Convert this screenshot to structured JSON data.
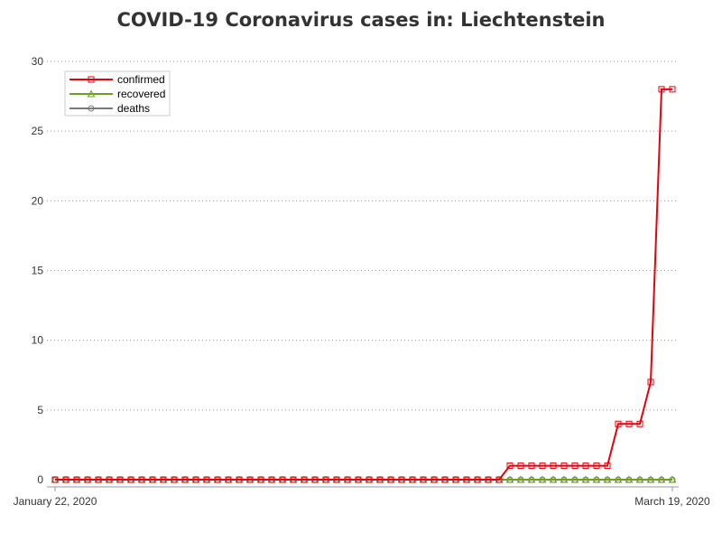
{
  "chart_data": {
    "type": "line",
    "title": "COVID-19 Coronavirus cases in: Liechtenstein",
    "xlabel": "",
    "ylabel": "",
    "x_start": "2020-01-22",
    "x_end": "2020-03-19",
    "x_tick_labels": [
      "January 22, 2020",
      "March 19, 2020"
    ],
    "ylim": [
      0,
      30
    ],
    "y_ticks": [
      0,
      5,
      10,
      15,
      20,
      25,
      30
    ],
    "grid": "horizontal-dotted",
    "legend_position": "top-left",
    "series": [
      {
        "name": "confirmed",
        "color": "#e8000b",
        "marker": "square",
        "values": [
          0,
          0,
          0,
          0,
          0,
          0,
          0,
          0,
          0,
          0,
          0,
          0,
          0,
          0,
          0,
          0,
          0,
          0,
          0,
          0,
          0,
          0,
          0,
          0,
          0,
          0,
          0,
          0,
          0,
          0,
          0,
          0,
          0,
          0,
          0,
          0,
          0,
          0,
          0,
          0,
          0,
          0,
          1,
          1,
          1,
          1,
          1,
          1,
          1,
          1,
          1,
          1,
          4,
          4,
          4,
          7,
          28,
          28
        ]
      },
      {
        "name": "recovered",
        "color": "#6aa121",
        "marker": "triangle",
        "values": [
          0,
          0,
          0,
          0,
          0,
          0,
          0,
          0,
          0,
          0,
          0,
          0,
          0,
          0,
          0,
          0,
          0,
          0,
          0,
          0,
          0,
          0,
          0,
          0,
          0,
          0,
          0,
          0,
          0,
          0,
          0,
          0,
          0,
          0,
          0,
          0,
          0,
          0,
          0,
          0,
          0,
          0,
          0,
          0,
          0,
          0,
          0,
          0,
          0,
          0,
          0,
          0,
          0,
          0,
          0,
          0,
          0,
          0
        ]
      },
      {
        "name": "deaths",
        "color": "#7a7a7a",
        "marker": "circle",
        "values": [
          0,
          0,
          0,
          0,
          0,
          0,
          0,
          0,
          0,
          0,
          0,
          0,
          0,
          0,
          0,
          0,
          0,
          0,
          0,
          0,
          0,
          0,
          0,
          0,
          0,
          0,
          0,
          0,
          0,
          0,
          0,
          0,
          0,
          0,
          0,
          0,
          0,
          0,
          0,
          0,
          0,
          0,
          0,
          0,
          0,
          0,
          0,
          0,
          0,
          0,
          0,
          0,
          0,
          0,
          0,
          0,
          0,
          0
        ]
      }
    ]
  }
}
